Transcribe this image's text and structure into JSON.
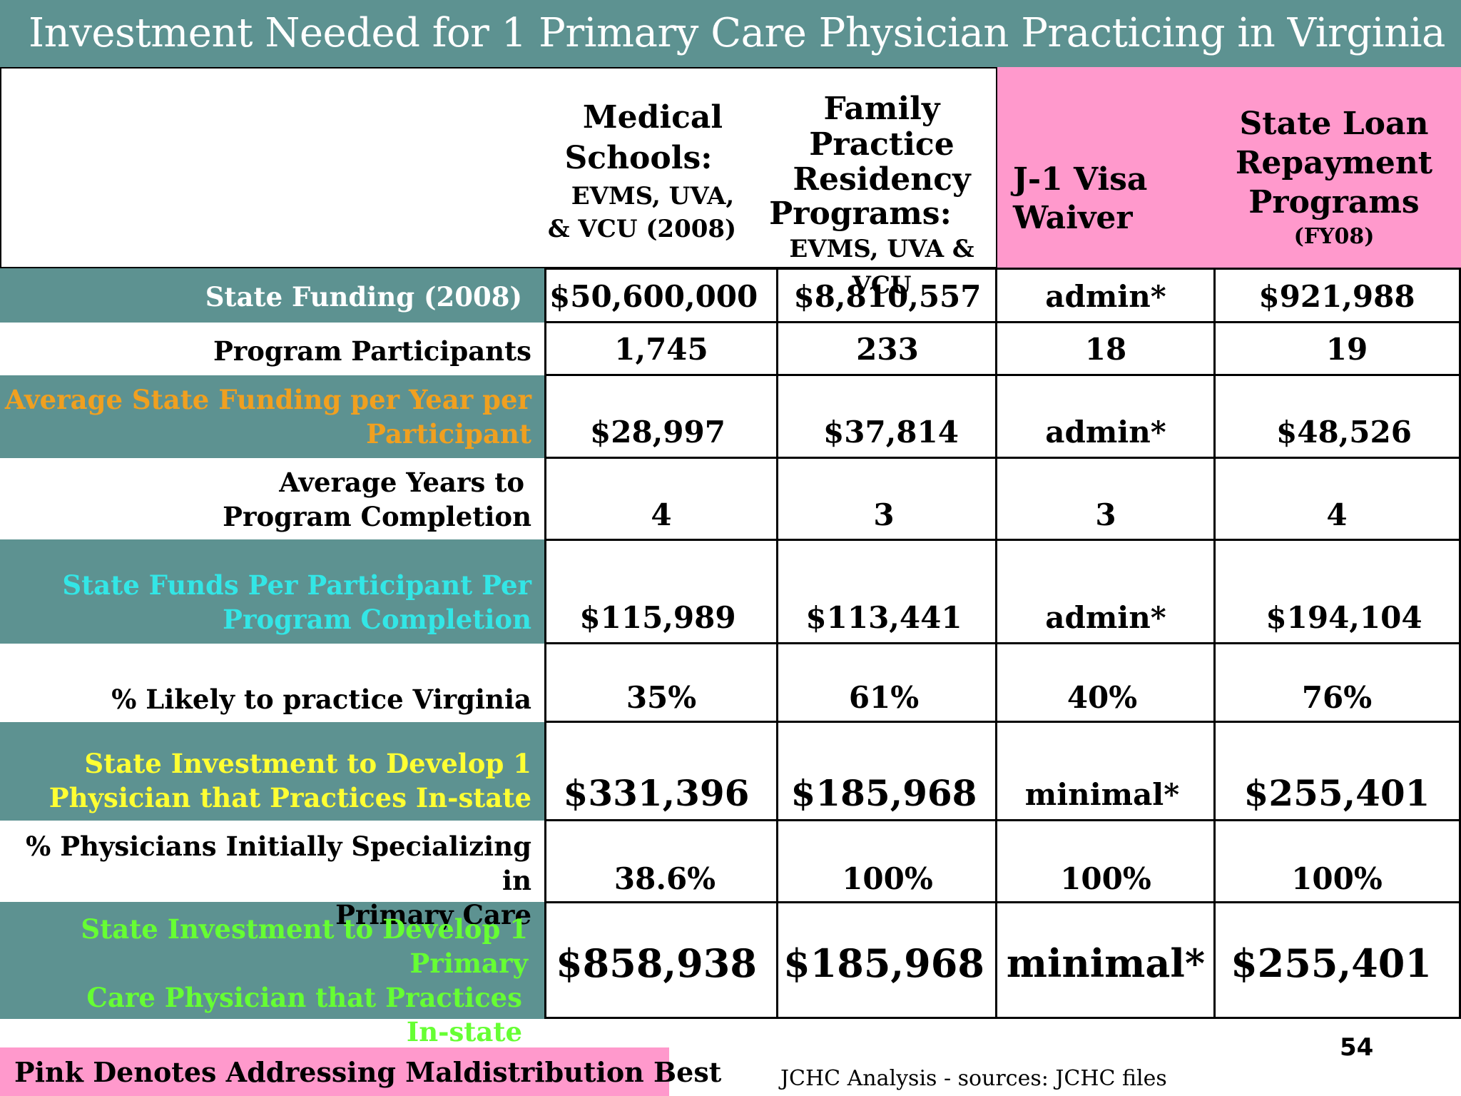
{
  "title": "Investment Needed for 1 Primary Care Physician Practicing in Virginia",
  "columns": [
    {
      "line1": "Medical",
      "line2": "Schools:",
      "line3": "EVMS, UVA,",
      "line4": "& VCU (2008)"
    },
    {
      "line1": "Family Practice",
      "line2": "Residency",
      "line3": "Programs:",
      "line4": "EVMS, UVA &",
      "line5": "VCU"
    },
    {
      "line1": "J-1 Visa",
      "line2": "Waiver"
    },
    {
      "line1": "State Loan",
      "line2": "Repayment",
      "line3": "Programs",
      "line4": "(FY08)"
    }
  ],
  "rows": [
    {
      "label": "State Funding (2008)",
      "label_color": "#ffffff",
      "values": [
        "$50,600,000",
        "$8,810,557",
        "admin*",
        "$921,988"
      ]
    },
    {
      "label": "Program Participants",
      "label_color": "#000000",
      "values": [
        "1,745",
        "233",
        "18",
        "19"
      ]
    },
    {
      "label_line1": "Average State Funding per Year per",
      "label_line2": "Participant",
      "label_color": "#f0a020",
      "values": [
        "$28,997",
        "$37,814",
        "admin*",
        "$48,526"
      ]
    },
    {
      "label_line1": "Average Years to",
      "label_line2": "Program Completion",
      "label_color": "#000000",
      "values": [
        "4",
        "3",
        "3",
        "4"
      ]
    },
    {
      "label_line1": "State Funds Per Participant Per",
      "label_line2": "Program Completion",
      "label_color": "#33e6e6",
      "values": [
        "$115,989",
        "$113,441",
        "admin*",
        "$194,104"
      ]
    },
    {
      "label": "% Likely to practice Virginia",
      "label_color": "#000000",
      "values": [
        "35%",
        "61%",
        "40%",
        "76%"
      ]
    },
    {
      "label_line1": "State Investment to Develop  1",
      "label_line2": "Physician that Practices In-state",
      "label_color": "#ffff33",
      "values": [
        "$331,396",
        "$185,968",
        "minimal*",
        "$255,401"
      ]
    },
    {
      "label_line1": "%  Physicians Initially Specializing in",
      "label_line2": "Primary Care",
      "label_color": "#000000",
      "values": [
        "38.6%",
        "100%",
        "100%",
        "100%"
      ]
    },
    {
      "label_line1": "State Investment to Develop  1 Primary",
      "label_line2": "Care Physician that Practices",
      "label_line3": "In-state",
      "label_color": "#66ff33",
      "values": [
        "$858,938",
        "$185,968",
        "minimal*",
        "$255,401"
      ]
    }
  ],
  "footer": {
    "note": "Pink Denotes Addressing Maldistribution Best",
    "source": "JCHC Analysis - sources: JCHC files",
    "page": "54"
  },
  "colors": {
    "teal": "#5d9291",
    "pink": "#ff99cc"
  }
}
